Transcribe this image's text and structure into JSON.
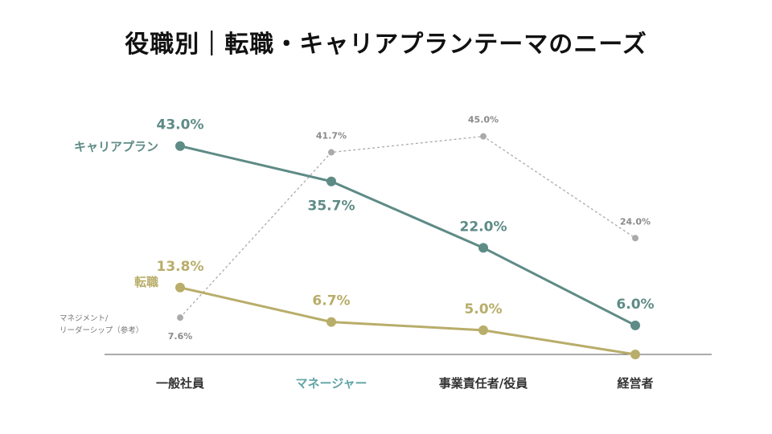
{
  "title": "役職別｜転職・キャリアプランテーマのニーズ",
  "chart_data": {
    "type": "line",
    "title": "役職別｜転職・キャリアプランテーマのニーズ",
    "categories": [
      "一般社員",
      "マネージャー",
      "事業責任者/役員",
      "経営者"
    ],
    "category_colors": [
      "#333333",
      "#5fa3a3",
      "#333333",
      "#333333"
    ],
    "ylim": [
      0,
      50
    ],
    "series": [
      {
        "name": "キャリアプラン",
        "values": [
          43.0,
          35.7,
          22.0,
          6.0
        ],
        "labels": [
          "43.0%",
          "35.7%",
          "22.0%",
          "6.0%"
        ],
        "label_positions": [
          "above",
          "below",
          "above",
          "above"
        ],
        "color": "#5e8b86",
        "style": "solid"
      },
      {
        "name": "転職",
        "values": [
          13.8,
          6.7,
          5.0,
          0
        ],
        "labels": [
          "13.8%",
          "6.7%",
          "5.0%",
          ""
        ],
        "label_positions": [
          "above",
          "above",
          "above",
          "above"
        ],
        "color": "#b8ad6a",
        "style": "solid"
      },
      {
        "name_lines": [
          "マネジメント/",
          "リーダーシップ（参考）"
        ],
        "values": [
          7.6,
          41.7,
          45.0,
          24.0
        ],
        "labels": [
          "7.6%",
          "41.7%",
          "45.0%",
          "24.0%"
        ],
        "label_positions": [
          "below",
          "above",
          "above",
          "above"
        ],
        "color": "#aaaaaa",
        "style": "dotted"
      }
    ]
  }
}
